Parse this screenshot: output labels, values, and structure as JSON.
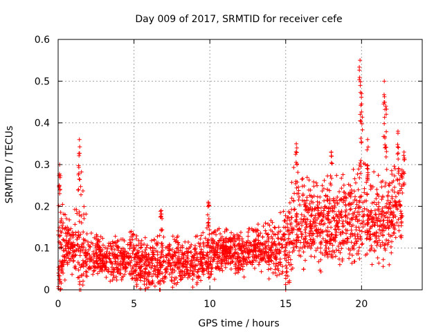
{
  "chart_data": {
    "type": "scatter",
    "title": "Day 009 of 2017, SRMTID for receiver cefe",
    "xlabel": "GPS time / hours",
    "ylabel": "SRMTID / TECUs",
    "xlim": [
      0,
      24
    ],
    "ylim": [
      0,
      0.6
    ],
    "xticks": [
      0,
      5,
      10,
      15,
      20
    ],
    "yticks": [
      0,
      0.1,
      0.2,
      0.3,
      0.4,
      0.5,
      0.6
    ],
    "xtick_labels": [
      "0",
      "5",
      "10",
      "15",
      "20"
    ],
    "ytick_labels": [
      "0",
      "0.1",
      "0.2",
      "0.3",
      "0.4",
      "0.5",
      "0.6"
    ],
    "grid": true,
    "marker": "+",
    "series": [
      {
        "name": "SRMTID",
        "color": "#ff0000",
        "envelope": {
          "x": [
            0.0,
            0.5,
            1.0,
            1.5,
            2.0,
            3.0,
            4.0,
            5.0,
            6.0,
            7.0,
            8.0,
            9.0,
            10.0,
            11.0,
            12.0,
            13.0,
            14.0,
            15.0,
            15.5,
            16.0,
            17.0,
            18.0,
            19.0,
            20.0,
            21.0,
            22.0,
            22.7
          ],
          "median": [
            0.08,
            0.1,
            0.1,
            0.1,
            0.08,
            0.07,
            0.07,
            0.07,
            0.05,
            0.06,
            0.06,
            0.06,
            0.08,
            0.09,
            0.08,
            0.1,
            0.09,
            0.09,
            0.15,
            0.16,
            0.15,
            0.15,
            0.16,
            0.18,
            0.16,
            0.17,
            0.2
          ],
          "upper": [
            0.25,
            0.18,
            0.17,
            0.3,
            0.14,
            0.13,
            0.13,
            0.15,
            0.12,
            0.14,
            0.13,
            0.13,
            0.16,
            0.15,
            0.14,
            0.16,
            0.17,
            0.2,
            0.3,
            0.28,
            0.27,
            0.28,
            0.28,
            0.35,
            0.28,
            0.3,
            0.3
          ]
        },
        "peaks": [
          {
            "x": 0.1,
            "y": 0.3
          },
          {
            "x": 1.4,
            "y": 0.36
          },
          {
            "x": 6.8,
            "y": 0.19
          },
          {
            "x": 9.9,
            "y": 0.21
          },
          {
            "x": 15.7,
            "y": 0.35
          },
          {
            "x": 18.0,
            "y": 0.33
          },
          {
            "x": 19.9,
            "y": 0.55
          },
          {
            "x": 20.0,
            "y": 0.47
          },
          {
            "x": 20.4,
            "y": 0.36
          },
          {
            "x": 21.5,
            "y": 0.5
          },
          {
            "x": 21.6,
            "y": 0.44
          },
          {
            "x": 22.4,
            "y": 0.38
          },
          {
            "x": 22.8,
            "y": 0.33
          }
        ],
        "point_count": 2600
      }
    ]
  }
}
